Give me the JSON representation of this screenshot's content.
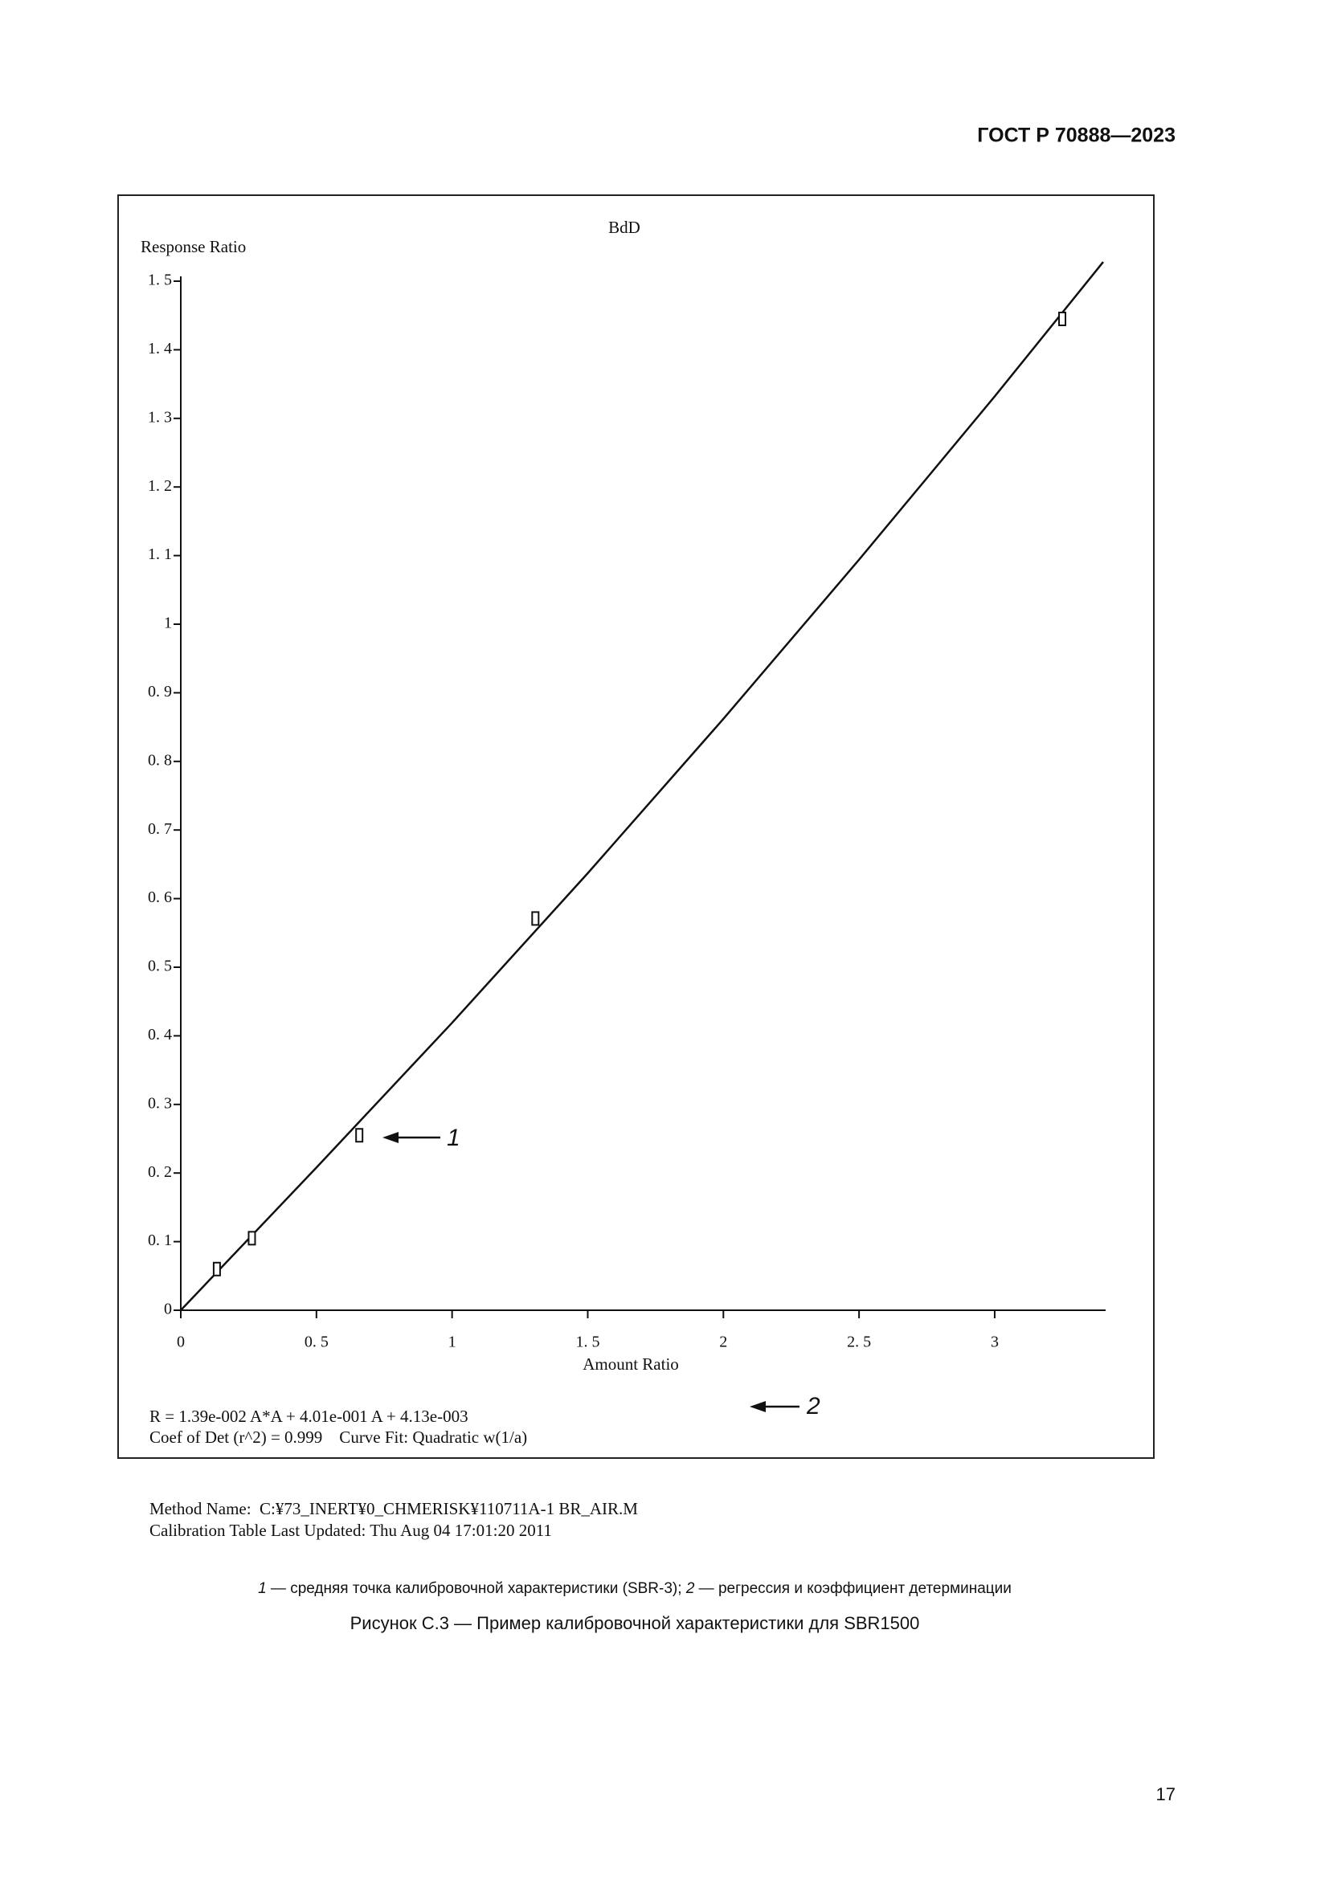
{
  "header": {
    "standard": "ГОСТ Р 70888—2023"
  },
  "chart_data": {
    "type": "scatter",
    "title": "BdD",
    "ylabel": "Response Ratio",
    "xlabel": "Amount Ratio",
    "x": [
      0.133,
      0.262,
      0.658,
      1.307,
      3.249
    ],
    "values": [
      0.06,
      0.105,
      0.255,
      0.571,
      1.445
    ],
    "fit": {
      "type": "line",
      "x": [
        0,
        0.5,
        1,
        1.5,
        2,
        2.5,
        3,
        3.4
      ],
      "values": [
        0,
        0.208,
        0.419,
        0.637,
        0.862,
        1.094,
        1.332,
        1.528
      ]
    },
    "xlim": [
      0,
      3.4
    ],
    "ylim": [
      0,
      1.5
    ],
    "xticks": [
      0,
      {
        "value": 0.5,
        "label": "0. 5"
      },
      1,
      {
        "value": 1.5,
        "label": "1. 5"
      },
      2,
      {
        "value": 2.5,
        "label": "2. 5"
      },
      3
    ],
    "yticks": [
      0,
      {
        "value": 0.1,
        "label": "0. 1"
      },
      {
        "value": 0.2,
        "label": "0. 2"
      },
      {
        "value": 0.3,
        "label": "0. 3"
      },
      {
        "value": 0.4,
        "label": "0. 4"
      },
      {
        "value": 0.5,
        "label": "0. 5"
      },
      {
        "value": 0.6,
        "label": "0. 6"
      },
      {
        "value": 0.7,
        "label": "0. 7"
      },
      {
        "value": 0.8,
        "label": "0. 8"
      },
      {
        "value": 0.9,
        "label": "0. 9"
      },
      1,
      {
        "value": 1.1,
        "label": "1. 1"
      },
      {
        "value": 1.2,
        "label": "1. 2"
      },
      {
        "value": 1.3,
        "label": "1. 3"
      },
      {
        "value": 1.4,
        "label": "1. 4"
      },
      {
        "value": 1.5,
        "label": "1. 5"
      }
    ],
    "annotations": [
      "1",
      "2"
    ],
    "equation": [
      "R = 1.39e-002 A*A + 4.01e-001 A + 4.13e-003",
      "Coef of Det (r^2) = 0.999    Curve Fit: Quadratic w(1/a)"
    ]
  },
  "method": [
    "Method Name:  C:¥73_INERT¥0_CHMERISK¥110711A-1 BR_AIR.M",
    "Calibration Table Last Updated: Thu Aug 04 17:01:20 2011"
  ],
  "note": [
    "1",
    " — средняя точка калибровочной характеристики (SBR-3); ",
    "2",
    " — регрессия и коэффициент детерминации"
  ],
  "caption": "Рисунок С.3 — Пример калибровочной характеристики для SBR1500",
  "page_number": "17"
}
